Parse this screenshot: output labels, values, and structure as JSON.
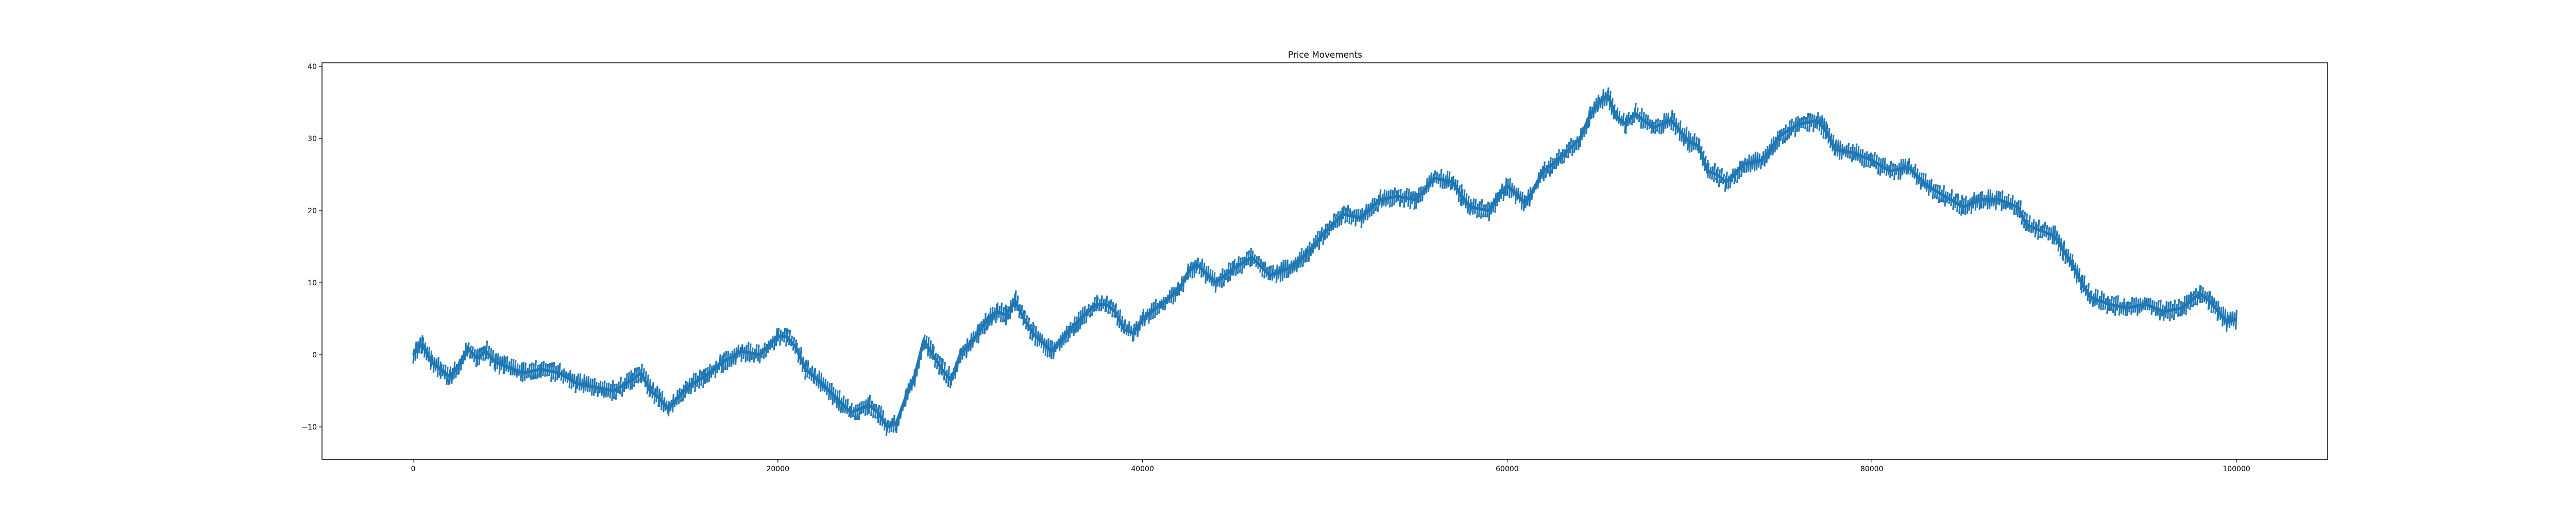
{
  "chart_data": {
    "type": "line",
    "title": "Price Movements",
    "xlabel": "",
    "ylabel": "",
    "xlim": [
      -5000,
      105000
    ],
    "ylim": [
      -14.5,
      40.5
    ],
    "xticks": [
      0,
      20000,
      40000,
      60000,
      80000,
      100000
    ],
    "yticks": [
      -10,
      0,
      10,
      20,
      30,
      40
    ],
    "grid": false,
    "legend": "none",
    "series": [
      {
        "color": "#1f77b4",
        "points": [
          [
            0,
            0
          ],
          [
            500,
            1.5
          ],
          [
            1000,
            -1
          ],
          [
            1500,
            -2
          ],
          [
            2000,
            -3
          ],
          [
            2500,
            -1.5
          ],
          [
            3000,
            1
          ],
          [
            3500,
            -0.5
          ],
          [
            4000,
            0.5
          ],
          [
            4500,
            -1
          ],
          [
            5000,
            -1.5
          ],
          [
            6000,
            -2.5
          ],
          [
            7000,
            -2
          ],
          [
            8000,
            -2.5
          ],
          [
            9000,
            -4
          ],
          [
            10000,
            -4.5
          ],
          [
            11000,
            -5
          ],
          [
            12000,
            -3.5
          ],
          [
            12500,
            -2.5
          ],
          [
            13000,
            -5
          ],
          [
            13500,
            -6
          ],
          [
            14000,
            -7.5
          ],
          [
            15000,
            -4.5
          ],
          [
            16000,
            -3
          ],
          [
            17000,
            -1
          ],
          [
            18000,
            0.5
          ],
          [
            19000,
            0
          ],
          [
            20000,
            2.5
          ],
          [
            20500,
            2.5
          ],
          [
            21000,
            1
          ],
          [
            21500,
            -2
          ],
          [
            22000,
            -3
          ],
          [
            23000,
            -5.5
          ],
          [
            24000,
            -8
          ],
          [
            25000,
            -7
          ],
          [
            25500,
            -8
          ],
          [
            26000,
            -10
          ],
          [
            26500,
            -9.5
          ],
          [
            27000,
            -6
          ],
          [
            27500,
            -3
          ],
          [
            28000,
            2
          ],
          [
            28500,
            0
          ],
          [
            29000,
            -2
          ],
          [
            29500,
            -3.5
          ],
          [
            30000,
            0
          ],
          [
            31000,
            3
          ],
          [
            31500,
            5
          ],
          [
            32000,
            6
          ],
          [
            32500,
            5.5
          ],
          [
            33000,
            7.5
          ],
          [
            33500,
            5
          ],
          [
            34000,
            3
          ],
          [
            35000,
            0.5
          ],
          [
            36000,
            3.5
          ],
          [
            37000,
            6
          ],
          [
            37500,
            7
          ],
          [
            38000,
            7
          ],
          [
            38500,
            6
          ],
          [
            39000,
            3.5
          ],
          [
            39500,
            3
          ],
          [
            40000,
            5
          ],
          [
            41000,
            7
          ],
          [
            42000,
            9
          ],
          [
            42500,
            11.5
          ],
          [
            43000,
            12.5
          ],
          [
            44000,
            10
          ],
          [
            45000,
            12
          ],
          [
            46000,
            13.5
          ],
          [
            47000,
            11
          ],
          [
            48000,
            12
          ],
          [
            49000,
            14
          ],
          [
            50000,
            17
          ],
          [
            51000,
            19.5
          ],
          [
            52000,
            19
          ],
          [
            53000,
            21.5
          ],
          [
            54000,
            22
          ],
          [
            55000,
            21.5
          ],
          [
            56000,
            24.5
          ],
          [
            57000,
            24
          ],
          [
            57500,
            22
          ],
          [
            58000,
            20.5
          ],
          [
            59000,
            20
          ],
          [
            60000,
            23.5
          ],
          [
            61000,
            21
          ],
          [
            62000,
            25.5
          ],
          [
            63000,
            27.5
          ],
          [
            64000,
            30
          ],
          [
            64500,
            33
          ],
          [
            65000,
            35
          ],
          [
            65500,
            36
          ],
          [
            66000,
            33
          ],
          [
            66500,
            32
          ],
          [
            67000,
            33.5
          ],
          [
            68000,
            31.5
          ],
          [
            69000,
            32.5
          ],
          [
            70000,
            29.5
          ],
          [
            70500,
            29
          ],
          [
            71000,
            25.5
          ],
          [
            71500,
            25
          ],
          [
            72000,
            24
          ],
          [
            72500,
            25
          ],
          [
            73000,
            26.5
          ],
          [
            74000,
            27
          ],
          [
            75000,
            30.5
          ],
          [
            76000,
            32
          ],
          [
            77000,
            32.5
          ],
          [
            77500,
            31
          ],
          [
            78000,
            28.5
          ],
          [
            79000,
            28
          ],
          [
            80000,
            27
          ],
          [
            81000,
            25.5
          ],
          [
            82000,
            26
          ],
          [
            83000,
            23.5
          ],
          [
            84000,
            22
          ],
          [
            85000,
            20.5
          ],
          [
            86000,
            21.5
          ],
          [
            87000,
            21.5
          ],
          [
            88000,
            20.5
          ],
          [
            88500,
            18
          ],
          [
            89000,
            17.5
          ],
          [
            90000,
            16.5
          ],
          [
            90500,
            14.5
          ],
          [
            91000,
            12.5
          ],
          [
            91500,
            10
          ],
          [
            92000,
            8
          ],
          [
            93000,
            7
          ],
          [
            94000,
            6.5
          ],
          [
            95000,
            7
          ],
          [
            96000,
            6
          ],
          [
            97000,
            6.5
          ],
          [
            97500,
            7.5
          ],
          [
            98000,
            8.5
          ],
          [
            98500,
            7.5
          ],
          [
            99000,
            6
          ],
          [
            99500,
            4.5
          ],
          [
            100000,
            5
          ]
        ]
      }
    ]
  }
}
